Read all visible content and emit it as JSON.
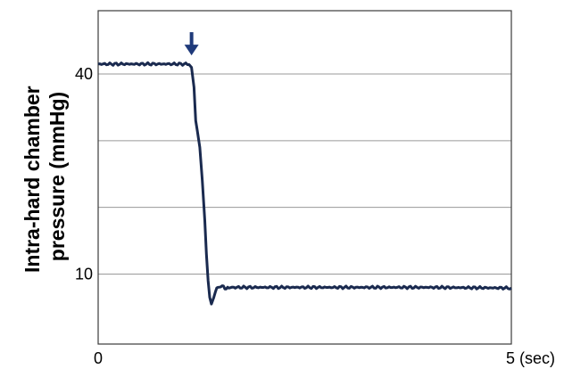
{
  "chart_data": {
    "type": "line",
    "title": "",
    "ylabel_lines": [
      "Intra-hard chamber",
      "pressure (mmHg)"
    ],
    "xlim": [
      0,
      5
    ],
    "ylim": [
      -0.5,
      49.5
    ],
    "x_ticks": [
      {
        "value": 0,
        "label": "0"
      },
      {
        "value": 5,
        "label": "5 (sec)"
      }
    ],
    "y_ticks": [
      {
        "value": 10,
        "label": "10"
      },
      {
        "value": 40,
        "label": "40"
      }
    ],
    "gridlines_y": [
      10,
      20,
      30,
      40
    ],
    "grid": true,
    "marker": {
      "type": "arrow-down",
      "x": 1.13,
      "y": 42
    },
    "colors": {
      "line": "#1a2a4f",
      "marker": "#1f3a7a",
      "grid": "#999999",
      "axis": "#3b3b3b"
    },
    "series": [
      {
        "x": [
          0.0,
          0.5,
          1.0,
          1.1,
          1.13,
          1.16,
          1.18,
          1.2,
          1.23,
          1.26,
          1.29,
          1.31,
          1.33,
          1.35,
          1.37,
          1.4,
          1.42,
          1.45,
          1.5,
          1.55,
          1.6,
          1.7,
          2.0,
          3.0,
          4.0,
          5.0
        ],
        "y": [
          41.5,
          41.5,
          41.5,
          41.5,
          41.0,
          38.0,
          33.0,
          31.5,
          29.0,
          24.0,
          18.0,
          13.0,
          9.0,
          6.5,
          5.5,
          6.5,
          7.5,
          8.0,
          8.2,
          7.8,
          8.0,
          8.0,
          8.0,
          8.0,
          8.0,
          7.9
        ]
      }
    ]
  }
}
